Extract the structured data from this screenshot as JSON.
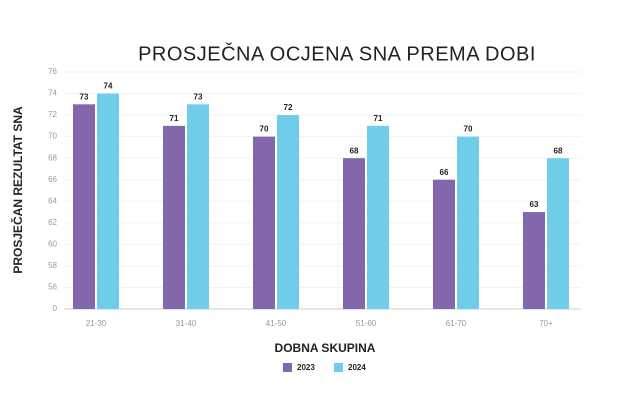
{
  "chart_data": {
    "type": "bar",
    "title": "PROSJEČNA OCJENA SNA PREMA DOBI",
    "xlabel": "DOBNA SKUPINA",
    "ylabel": "PROSJEČAN REZULTAT SNA",
    "categories": [
      "21-30",
      "31-40",
      "41-50",
      "51-60",
      "61-70",
      "70+"
    ],
    "series": [
      {
        "name": "2023",
        "color": "#8267ad",
        "values": [
          73,
          71,
          70,
          68,
          66,
          63
        ]
      },
      {
        "name": "2024",
        "color": "#6fcde9",
        "values": [
          74,
          73,
          72,
          71,
          70,
          68
        ]
      }
    ],
    "ylim": [
      0,
      76
    ],
    "yticks": [
      0,
      56,
      58,
      60,
      62,
      64,
      66,
      68,
      70,
      72,
      74,
      76
    ],
    "grid": true,
    "legend": "bottom"
  }
}
